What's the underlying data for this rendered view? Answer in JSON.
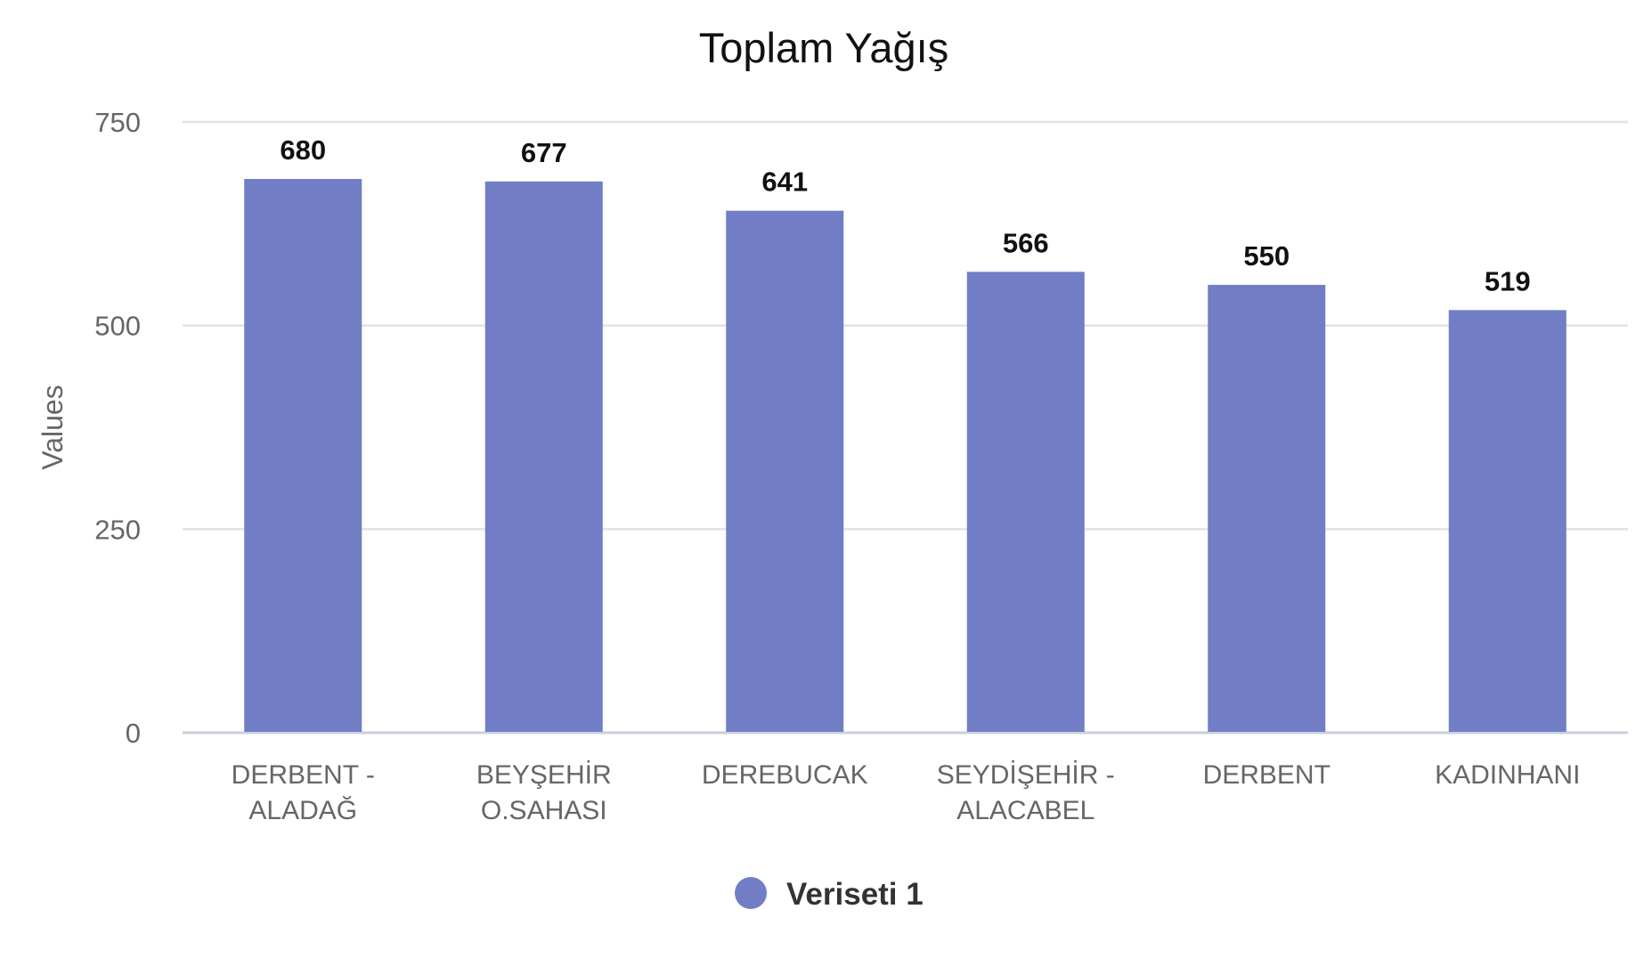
{
  "chart_data": {
    "type": "bar",
    "title": "Toplam Yağış",
    "ylabel": "Values",
    "xlabel": "",
    "categories": [
      [
        "DERBENT -",
        "ALADAĞ"
      ],
      [
        "BEYŞEHİR",
        "O.SAHASI"
      ],
      [
        "DEREBUCAK"
      ],
      [
        "SEYDİŞEHİR -",
        "ALACABEL"
      ],
      [
        "DERBENT"
      ],
      [
        "KADINHANI"
      ]
    ],
    "series": [
      {
        "name": "Veriseti 1",
        "values": [
          680,
          677,
          641,
          566,
          550,
          519
        ],
        "color": "#717ec6"
      }
    ],
    "ylim": [
      0,
      750
    ],
    "yticks": [
      0,
      250,
      500,
      750
    ],
    "grid": true,
    "legend": "bottom-center",
    "data_labels": true
  }
}
